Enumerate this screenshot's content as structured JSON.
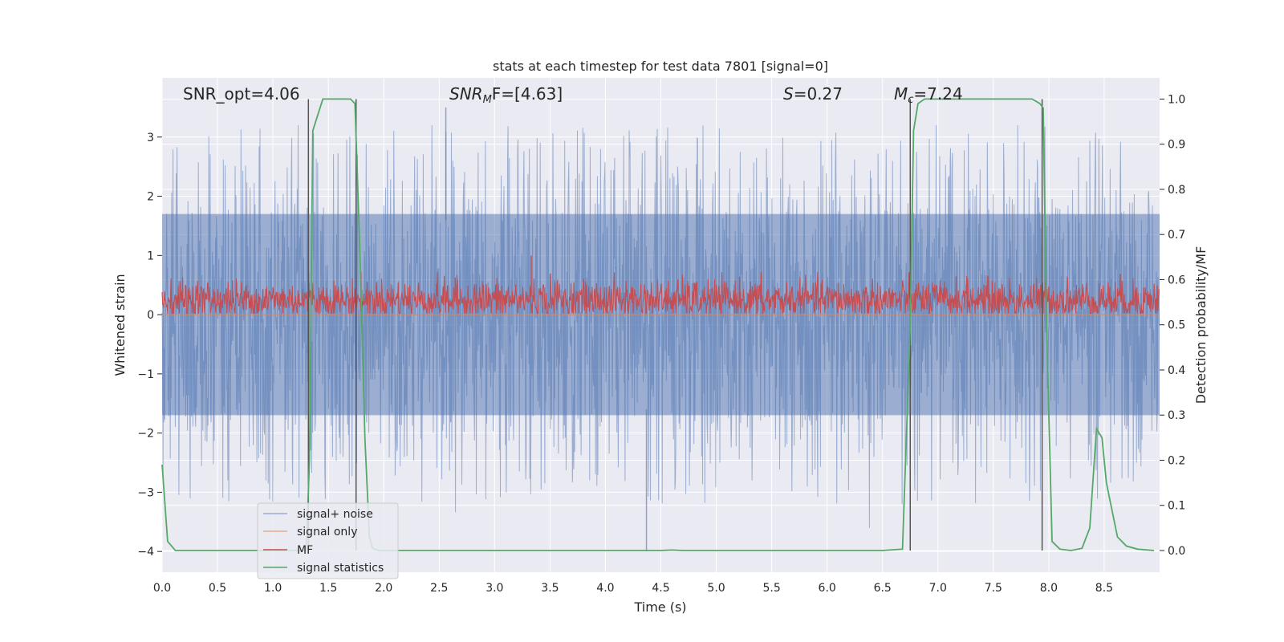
{
  "chart_data": {
    "type": "line",
    "title": "stats at each timestep for test data 7801 [signal=0]",
    "xlabel": "Time (s)",
    "ylabel_left": "Whitened strain",
    "ylabel_right": "Detection probability/MF",
    "xlim": [
      0.0,
      9.0
    ],
    "ylim_left": [
      -4.35,
      4.0
    ],
    "ylim_right": [
      -0.048,
      1.047
    ],
    "x_ticks": [
      "0.0",
      "0.5",
      "1.0",
      "1.5",
      "2.0",
      "2.5",
      "3.0",
      "3.5",
      "4.0",
      "4.5",
      "5.0",
      "5.5",
      "6.0",
      "6.5",
      "7.0",
      "7.5",
      "8.0",
      "8.5"
    ],
    "y_left_ticks": [
      "−4",
      "−3",
      "−2",
      "−1",
      "0",
      "1",
      "2",
      "3"
    ],
    "y_right_ticks": [
      "0.0",
      "0.1",
      "0.2",
      "0.3",
      "0.4",
      "0.5",
      "0.6",
      "0.7",
      "0.8",
      "0.9",
      "1.0"
    ],
    "annotations": {
      "snr_opt": "SNR_opt=4.06",
      "snr_mf": "SNR",
      "snr_mf_sub": "M",
      "snr_mf_rest": "F=[4.63]",
      "s_var": "S",
      "s_val": "=0.27",
      "mc_var": "M",
      "mc_sub": "c",
      "mc_val": "=7.24"
    },
    "vertical_lines": [
      1.32,
      1.75,
      6.75,
      7.94
    ],
    "noise": {
      "core_range": [
        -1.7,
        1.7
      ],
      "spike_max": 3.5,
      "spike_min": -4.0
    },
    "mf": {
      "center": 0.25,
      "range": [
        0.0,
        0.75
      ],
      "spike_at": 3.33,
      "spike_value": 1.0
    },
    "series": [
      {
        "name": "signal+ noise",
        "color": "#4c72b0"
      },
      {
        "name": "signal only",
        "color": "#dd8452"
      },
      {
        "name": "MF",
        "color": "#c44e52"
      },
      {
        "name": "signal statistics",
        "color": "#55a868",
        "x": [
          0.0,
          0.05,
          0.12,
          0.2,
          1.3,
          1.33,
          1.36,
          1.45,
          1.55,
          1.7,
          1.74,
          1.78,
          1.83,
          1.87,
          1.9,
          1.95,
          2.0,
          4.5,
          4.6,
          4.7,
          6.5,
          6.68,
          6.75,
          6.78,
          6.82,
          6.88,
          7.0,
          7.5,
          7.85,
          7.92,
          7.95,
          7.98,
          8.03,
          8.1,
          8.2,
          8.3,
          8.37,
          8.43,
          8.48,
          8.52,
          8.57,
          8.62,
          8.7,
          8.8,
          8.95
        ],
        "y": [
          0.19,
          0.02,
          0.0,
          0.0,
          0.0,
          0.2,
          0.93,
          1.0,
          1.0,
          1.0,
          0.99,
          0.7,
          0.25,
          0.03,
          0.005,
          0.0,
          0.0,
          0.0,
          0.001,
          0.0,
          0.0,
          0.003,
          0.5,
          0.93,
          0.99,
          1.0,
          1.0,
          1.0,
          1.0,
          0.99,
          0.98,
          0.5,
          0.02,
          0.003,
          0.0,
          0.005,
          0.05,
          0.27,
          0.25,
          0.15,
          0.09,
          0.03,
          0.01,
          0.003,
          0.0
        ]
      }
    ],
    "legend": {
      "position": "lower-left",
      "entries": [
        "signal+ noise",
        "signal only",
        "MF",
        "signal statistics"
      ]
    }
  }
}
